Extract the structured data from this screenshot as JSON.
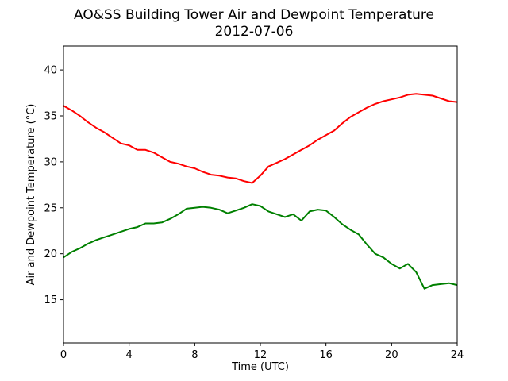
{
  "chart_data": {
    "type": "line",
    "title": "AO&SS Building Tower Air and Dewpoint Temperature",
    "subtitle": "2012-07-06",
    "xlabel": "Time (UTC)",
    "ylabel": "Air and Dewpoint Temperature (°C)",
    "xlim": [
      0,
      24
    ],
    "ylim": [
      10.3,
      42.6
    ],
    "xticks": [
      0,
      4,
      8,
      12,
      16,
      20,
      24
    ],
    "xtick_labels": [
      "0",
      "4",
      "8",
      "12",
      "16",
      "20",
      "24"
    ],
    "yticks": [
      15,
      20,
      25,
      30,
      35,
      40
    ],
    "ytick_labels": [
      "15",
      "20",
      "25",
      "30",
      "35",
      "40"
    ],
    "grid": false,
    "series": [
      {
        "color": "#ff0000",
        "x": [
          0,
          0.5,
          1,
          1.5,
          2,
          2.5,
          3,
          3.5,
          4,
          4.5,
          5,
          5.5,
          6,
          6.5,
          7,
          7.5,
          8,
          8.5,
          9,
          9.5,
          10,
          10.5,
          11,
          11.5,
          12,
          12.5,
          13,
          13.5,
          14,
          14.5,
          15,
          15.5,
          16,
          16.5,
          17,
          17.5,
          18,
          18.5,
          19,
          19.5,
          20,
          20.5,
          21,
          21.5,
          22,
          22.5,
          23,
          23.5,
          24
        ],
        "y": [
          36.1,
          35.6,
          35.0,
          34.3,
          33.7,
          33.2,
          32.6,
          32.0,
          31.8,
          31.3,
          31.3,
          31.0,
          30.5,
          30.0,
          29.8,
          29.5,
          29.3,
          28.9,
          28.6,
          28.5,
          28.3,
          28.2,
          27.9,
          27.7,
          28.5,
          29.5,
          29.9,
          30.3,
          30.8,
          31.3,
          31.8,
          32.4,
          32.9,
          33.4,
          34.2,
          34.9,
          35.4,
          35.9,
          36.3,
          36.6,
          36.8,
          37.0,
          37.3,
          37.4,
          37.3,
          37.2,
          36.9,
          36.6,
          36.5
        ]
      },
      {
        "color": "#008000",
        "x": [
          0,
          0.5,
          1,
          1.5,
          2,
          2.5,
          3,
          3.5,
          4,
          4.5,
          5,
          5.5,
          6,
          6.5,
          7,
          7.5,
          8,
          8.5,
          9,
          9.5,
          10,
          10.5,
          11,
          11.5,
          12,
          12.5,
          13,
          13.5,
          14,
          14.5,
          15,
          15.5,
          16,
          16.5,
          17,
          17.5,
          18,
          18.5,
          19,
          19.5,
          20,
          20.5,
          21,
          21.5,
          22,
          22.5,
          23,
          23.5,
          24
        ],
        "y": [
          19.6,
          20.2,
          20.6,
          21.1,
          21.5,
          21.8,
          22.1,
          22.4,
          22.7,
          22.9,
          23.3,
          23.3,
          23.4,
          23.8,
          24.3,
          24.9,
          25.0,
          25.1,
          25.0,
          24.8,
          24.4,
          24.7,
          25.0,
          25.4,
          25.2,
          24.6,
          24.3,
          24.0,
          24.3,
          23.6,
          24.6,
          24.8,
          24.7,
          24.0,
          23.2,
          22.6,
          22.1,
          21.0,
          20.0,
          19.6,
          18.9,
          18.4,
          18.9,
          18.0,
          16.2,
          16.6,
          16.7,
          16.8,
          16.6
        ]
      }
    ]
  }
}
